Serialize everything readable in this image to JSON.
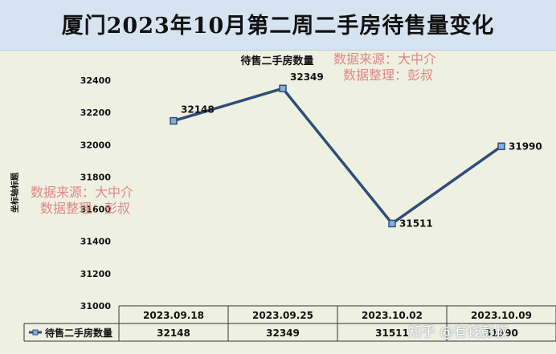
{
  "title": "厦门2023年10月第二周二手房待售量变化",
  "watermark": {
    "line1": "数据来源：大中介",
    "line2": "数据整理：彭叔",
    "zhihu": "知乎 @有钱彭叔"
  },
  "chart_data": {
    "type": "line",
    "title": "待售二手房数量",
    "ylabel": "坐标轴标题",
    "xlabel": "",
    "categories": [
      "2023.09.18",
      "2023.09.25",
      "2023.10.02",
      "2023.10.09"
    ],
    "series": [
      {
        "name": "待售二手房数量",
        "values": [
          32148,
          32349,
          31511,
          31990
        ]
      }
    ],
    "ylim": [
      31000,
      32400
    ],
    "yticks": [
      31000,
      31200,
      31400,
      31600,
      31800,
      32000,
      32200,
      32400
    ],
    "data_labels": true,
    "grid": false,
    "legend": "data-table-left",
    "line_color": "#2f4d78",
    "marker_color": "#7fb3d5"
  }
}
